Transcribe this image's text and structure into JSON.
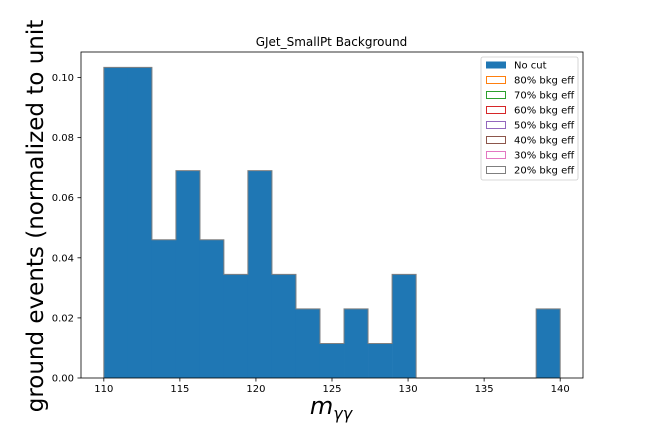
{
  "chart_data": {
    "type": "bar",
    "title": "GJet_SmallPt Background",
    "xlabel": "m_{γγ}",
    "xlabel_main": "m",
    "xlabel_sub": "γγ",
    "ylabel": "ground events (normalized to unit",
    "xlim": [
      108.5,
      141.5
    ],
    "ylim": [
      0,
      0.1085
    ],
    "x_ticks": [
      110,
      115,
      120,
      125,
      130,
      135,
      140
    ],
    "y_ticks": [
      0.0,
      0.02,
      0.04,
      0.06,
      0.08,
      0.1
    ],
    "y_tick_labels": [
      "0.00",
      "0.02",
      "0.04",
      "0.06",
      "0.08",
      "0.10"
    ],
    "bin_edges": [
      110,
      111.58,
      113.16,
      114.74,
      116.32,
      117.89,
      119.47,
      121.05,
      122.63,
      124.21,
      125.79,
      127.37,
      128.95,
      130.53,
      132.11,
      133.68,
      135.26,
      136.84,
      138.42,
      140
    ],
    "series": [
      {
        "name": "No cut",
        "style": "filled",
        "color": "#1f77b4",
        "values": [
          0.1034,
          0.1034,
          0.046,
          0.069,
          0.046,
          0.0345,
          0.069,
          0.0345,
          0.023,
          0.0115,
          0.023,
          0.0115,
          0.0345,
          0,
          0,
          0,
          0,
          0,
          0.023
        ]
      },
      {
        "name": "80% bkg eff",
        "style": "step",
        "color": "#ff7f0e",
        "values": []
      },
      {
        "name": "70% bkg eff",
        "style": "step",
        "color": "#2ca02c",
        "values": []
      },
      {
        "name": "60% bkg eff",
        "style": "step",
        "color": "#d62728",
        "values": []
      },
      {
        "name": "50% bkg eff",
        "style": "step",
        "color": "#9467bd",
        "values": []
      },
      {
        "name": "40% bkg eff",
        "style": "step",
        "color": "#8c564b",
        "values": []
      },
      {
        "name": "30% bkg eff",
        "style": "step",
        "color": "#e377c2",
        "values": []
      },
      {
        "name": "20% bkg eff",
        "style": "step",
        "color": "#7f7f7f",
        "values": []
      }
    ],
    "grid": false,
    "legend_position": "top-right"
  }
}
